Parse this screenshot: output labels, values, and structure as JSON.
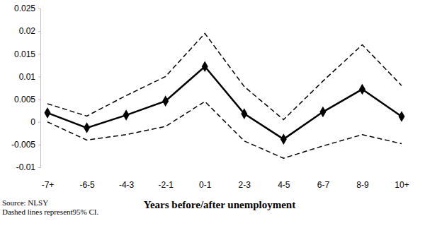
{
  "chart_data": {
    "type": "line",
    "x_label": "Years before/after unemployment",
    "annotations": [
      "Source: NLSY",
      "Dashed lines represent95% CI."
    ],
    "categories": [
      "-7+",
      "-6-5",
      "-4-3",
      "-2-1",
      "0-1",
      "2-3",
      "4-5",
      "6-7",
      "8-9",
      "10+"
    ],
    "series": [
      {
        "color": "#000000",
        "line_style": "solid",
        "marker": "diamond",
        "values": [
          0.002,
          -0.0013,
          0.0015,
          0.0046,
          0.0122,
          0.0018,
          -0.0038,
          0.0022,
          0.0072,
          0.0012
        ]
      },
      {
        "color": "#000000",
        "line_style": "dashed",
        "marker": "none",
        "values": [
          0.004,
          0.0013,
          0.0058,
          0.01,
          0.0195,
          0.0078,
          0.0005,
          0.009,
          0.017,
          0.008
        ]
      },
      {
        "color": "#000000",
        "line_style": "dashed",
        "marker": "none",
        "values": [
          0.0,
          -0.004,
          -0.0028,
          -0.001,
          0.0045,
          -0.0042,
          -0.008,
          -0.0053,
          -0.0028,
          -0.0048
        ]
      }
    ],
    "ylim": [
      -0.01,
      0.025
    ],
    "yticks": [
      -0.01,
      -0.005,
      0,
      0.005,
      0.01,
      0.015,
      0.02,
      0.025
    ],
    "grid": false
  }
}
